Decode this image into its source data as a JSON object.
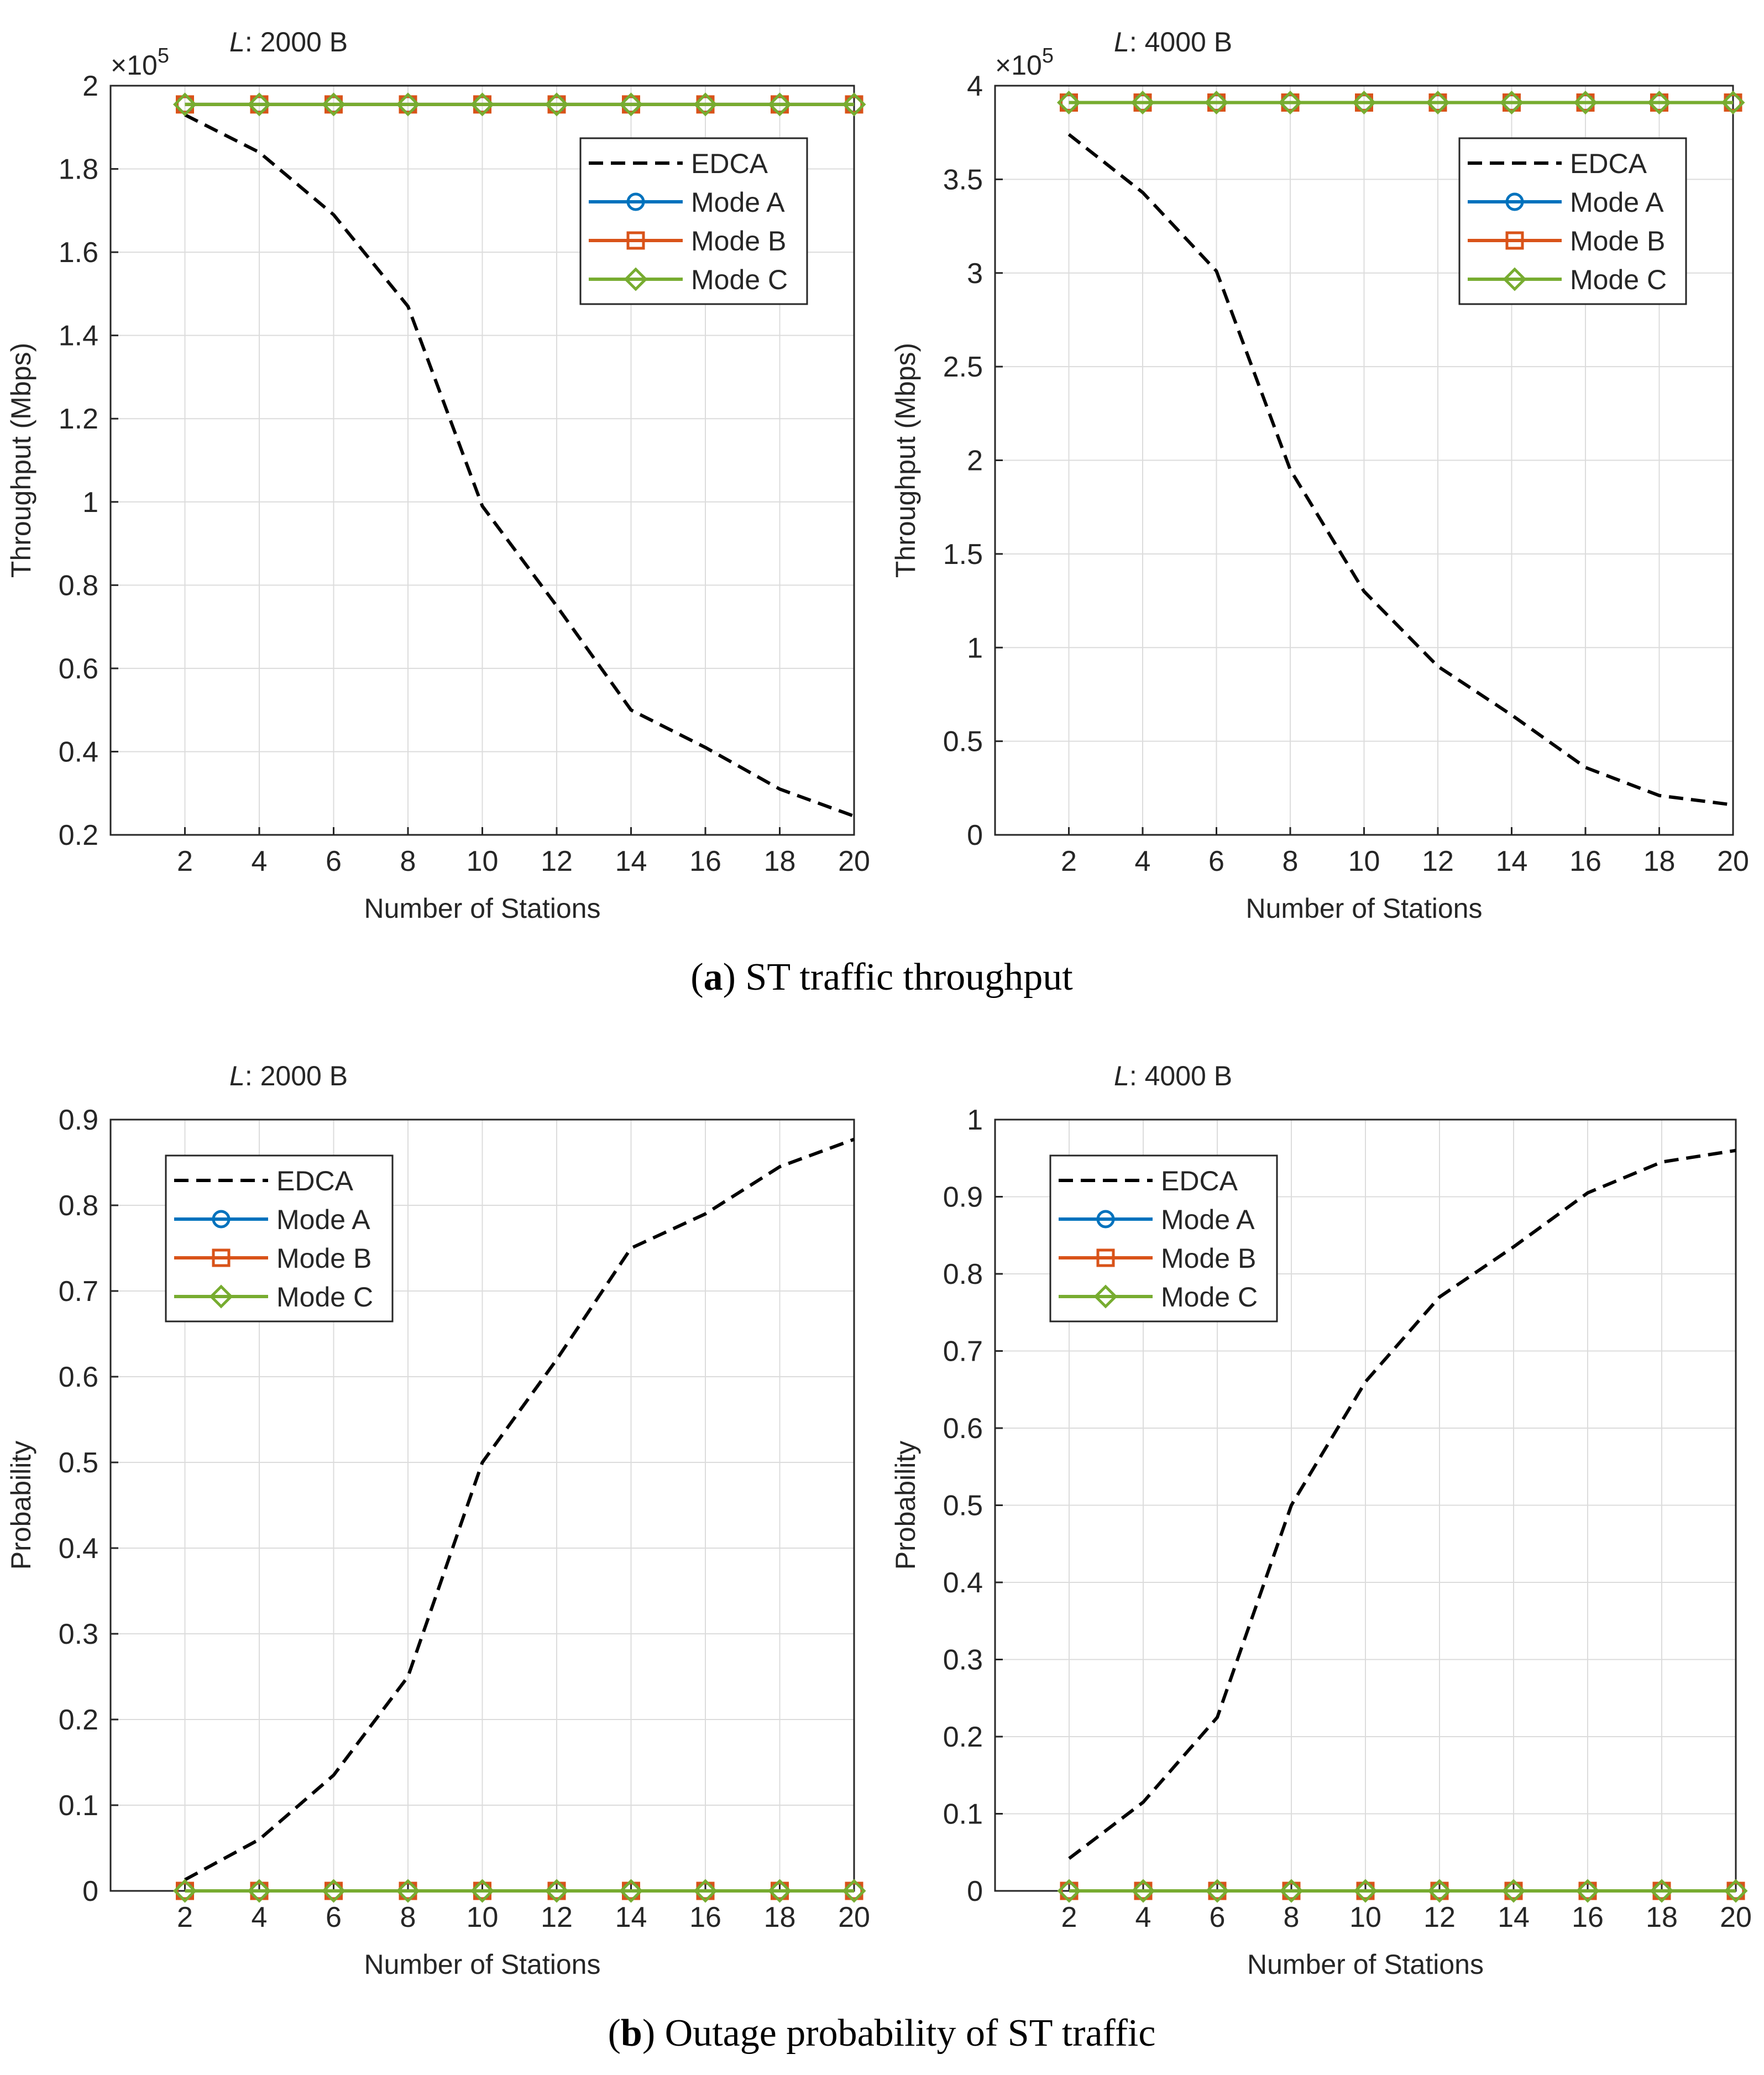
{
  "colors": {
    "edca": "#000000",
    "modeA": "#0072BD",
    "modeB": "#D95319",
    "modeC": "#77AC30",
    "grid": "#dcdcdc",
    "axis": "#262626"
  },
  "captions": [
    {
      "letter": "a",
      "text": "ST traffic throughput"
    },
    {
      "letter": "b",
      "text": "Outage probability of ST traffic"
    }
  ],
  "chart_data": [
    {
      "type": "line",
      "title_var": "L",
      "title_rest": ": 2000 B",
      "xlabel": "Number of Stations",
      "ylabel": "Throughput (Mbps)",
      "exponent_base": "×10",
      "exponent_power": "5",
      "xlim": [
        0,
        20
      ],
      "ylim": [
        0.2,
        2.0
      ],
      "xticks": [
        2,
        4,
        6,
        8,
        10,
        12,
        14,
        16,
        18,
        20
      ],
      "yticks": [
        0.2,
        0.4,
        0.6,
        0.8,
        1.0,
        1.2,
        1.4,
        1.6,
        1.8,
        2.0
      ],
      "ytick_labels": [
        "0.2",
        "0.4",
        "0.6",
        "0.8",
        "1",
        "1.2",
        "1.4",
        "1.6",
        "1.8",
        "2"
      ],
      "legend_position": "top-right",
      "x": [
        2,
        4,
        6,
        8,
        10,
        12,
        14,
        16,
        18,
        20
      ],
      "series": [
        {
          "name": "EDCA",
          "marker": "none",
          "style": "dashed",
          "values": [
            1.93,
            1.84,
            1.69,
            1.47,
            0.99,
            0.75,
            0.5,
            0.41,
            0.31,
            0.245
          ]
        },
        {
          "name": "Mode A",
          "marker": "circle",
          "style": "solid",
          "values": [
            1.955,
            1.955,
            1.955,
            1.955,
            1.955,
            1.955,
            1.955,
            1.955,
            1.955,
            1.955
          ]
        },
        {
          "name": "Mode B",
          "marker": "square",
          "style": "solid",
          "values": [
            1.955,
            1.955,
            1.955,
            1.955,
            1.955,
            1.955,
            1.955,
            1.955,
            1.955,
            1.955
          ]
        },
        {
          "name": "Mode C",
          "marker": "diamond",
          "style": "solid",
          "values": [
            1.955,
            1.955,
            1.955,
            1.955,
            1.955,
            1.955,
            1.955,
            1.955,
            1.955,
            1.955
          ]
        }
      ]
    },
    {
      "type": "line",
      "title_var": "L",
      "title_rest": ": 4000 B",
      "xlabel": "Number of Stations",
      "ylabel": "Throughput (Mbps)",
      "exponent_base": "×10",
      "exponent_power": "5",
      "xlim": [
        0,
        20
      ],
      "ylim": [
        0,
        4.0
      ],
      "xticks": [
        2,
        4,
        6,
        8,
        10,
        12,
        14,
        16,
        18,
        20
      ],
      "yticks": [
        0,
        0.5,
        1.0,
        1.5,
        2.0,
        2.5,
        3.0,
        3.5,
        4.0
      ],
      "ytick_labels": [
        "0",
        "0.5",
        "1",
        "1.5",
        "2",
        "2.5",
        "3",
        "3.5",
        "4"
      ],
      "legend_position": "top-right",
      "x": [
        2,
        4,
        6,
        8,
        10,
        12,
        14,
        16,
        18,
        20
      ],
      "series": [
        {
          "name": "EDCA",
          "marker": "none",
          "style": "dashed",
          "values": [
            3.74,
            3.43,
            3.01,
            1.95,
            1.3,
            0.9,
            0.64,
            0.36,
            0.21,
            0.16
          ]
        },
        {
          "name": "Mode A",
          "marker": "circle",
          "style": "solid",
          "values": [
            3.91,
            3.91,
            3.91,
            3.91,
            3.91,
            3.91,
            3.91,
            3.91,
            3.91,
            3.91
          ]
        },
        {
          "name": "Mode B",
          "marker": "square",
          "style": "solid",
          "values": [
            3.91,
            3.91,
            3.91,
            3.91,
            3.91,
            3.91,
            3.91,
            3.91,
            3.91,
            3.91
          ]
        },
        {
          "name": "Mode C",
          "marker": "diamond",
          "style": "solid",
          "values": [
            3.91,
            3.91,
            3.91,
            3.91,
            3.91,
            3.91,
            3.91,
            3.91,
            3.91,
            3.91
          ]
        }
      ]
    },
    {
      "type": "line",
      "title_var": "L",
      "title_rest": ": 2000 B",
      "xlabel": "Number of Stations",
      "ylabel": "Probability",
      "exponent_base": "",
      "exponent_power": "",
      "xlim": [
        0,
        20
      ],
      "ylim": [
        0,
        0.9
      ],
      "xticks": [
        2,
        4,
        6,
        8,
        10,
        12,
        14,
        16,
        18,
        20
      ],
      "yticks": [
        0,
        0.1,
        0.2,
        0.3,
        0.4,
        0.5,
        0.6,
        0.7,
        0.8,
        0.9
      ],
      "ytick_labels": [
        "0",
        "0.1",
        "0.2",
        "0.3",
        "0.4",
        "0.5",
        "0.6",
        "0.7",
        "0.8",
        "0.9"
      ],
      "legend_position": "top-left",
      "x": [
        2,
        4,
        6,
        8,
        10,
        12,
        14,
        16,
        18,
        20
      ],
      "series": [
        {
          "name": "EDCA",
          "marker": "none",
          "style": "dashed",
          "values": [
            0.013,
            0.06,
            0.135,
            0.25,
            0.5,
            0.62,
            0.75,
            0.79,
            0.845,
            0.877
          ]
        },
        {
          "name": "Mode A",
          "marker": "circle",
          "style": "solid",
          "values": [
            0,
            0,
            0,
            0,
            0,
            0,
            0,
            0,
            0,
            0
          ]
        },
        {
          "name": "Mode B",
          "marker": "square",
          "style": "solid",
          "values": [
            0,
            0,
            0,
            0,
            0,
            0,
            0,
            0,
            0,
            0
          ]
        },
        {
          "name": "Mode C",
          "marker": "diamond",
          "style": "solid",
          "values": [
            0,
            0,
            0,
            0,
            0,
            0,
            0,
            0,
            0,
            0
          ]
        }
      ]
    },
    {
      "type": "line",
      "title_var": "L",
      "title_rest": ": 4000 B",
      "xlabel": "Number of Stations",
      "ylabel": "Probability",
      "exponent_base": "",
      "exponent_power": "",
      "xlim": [
        0,
        20
      ],
      "ylim": [
        0,
        1.0
      ],
      "xticks": [
        2,
        4,
        6,
        8,
        10,
        12,
        14,
        16,
        18,
        20
      ],
      "yticks": [
        0,
        0.1,
        0.2,
        0.3,
        0.4,
        0.5,
        0.6,
        0.7,
        0.8,
        0.9,
        1.0
      ],
      "ytick_labels": [
        "0",
        "0.1",
        "0.2",
        "0.3",
        "0.4",
        "0.5",
        "0.6",
        "0.7",
        "0.8",
        "0.9",
        "1"
      ],
      "legend_position": "top-left",
      "x": [
        2,
        4,
        6,
        8,
        10,
        12,
        14,
        16,
        18,
        20
      ],
      "series": [
        {
          "name": "EDCA",
          "marker": "none",
          "style": "dashed",
          "values": [
            0.042,
            0.115,
            0.225,
            0.5,
            0.66,
            0.77,
            0.835,
            0.905,
            0.945,
            0.96
          ]
        },
        {
          "name": "Mode A",
          "marker": "circle",
          "style": "solid",
          "values": [
            0,
            0,
            0,
            0,
            0,
            0,
            0,
            0,
            0,
            0
          ]
        },
        {
          "name": "Mode B",
          "marker": "square",
          "style": "solid",
          "values": [
            0,
            0,
            0,
            0,
            0,
            0,
            0,
            0,
            0,
            0
          ]
        },
        {
          "name": "Mode C",
          "marker": "diamond",
          "style": "solid",
          "values": [
            0,
            0,
            0,
            0,
            0,
            0,
            0,
            0,
            0,
            0
          ]
        }
      ]
    }
  ]
}
